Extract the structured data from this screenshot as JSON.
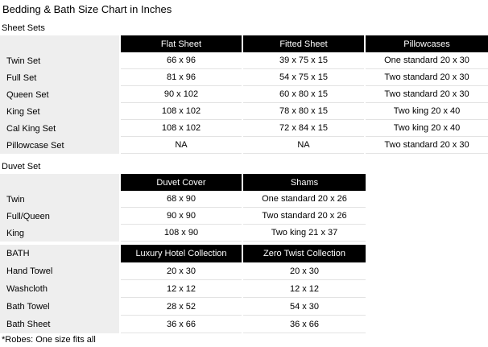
{
  "page": {
    "title": "Bedding & Bath Size Chart in Inches",
    "footnote": "*Robes: One size fits all"
  },
  "colors": {
    "header_bg": "#000000",
    "header_text": "#ffffff",
    "label_column_bg": "#eeeeee",
    "row_border": "#e3e3e3",
    "text": "#000000"
  },
  "tables": [
    {
      "section_label": "Sheet Sets",
      "columns": [
        "",
        "Flat Sheet",
        "Fitted Sheet",
        "Pillowcases"
      ],
      "rows": [
        {
          "label": "Twin Set",
          "values": [
            "66 x 96",
            "39 x 75 x 15",
            "One standard 20 x 30"
          ]
        },
        {
          "label": "Full Set",
          "values": [
            "81 x 96",
            "54 x 75 x 15",
            "Two standard 20 x 30"
          ]
        },
        {
          "label": "Queen Set",
          "values": [
            "90 x 102",
            "60 x 80 x 15",
            "Two standard 20 x 30"
          ]
        },
        {
          "label": "King Set",
          "values": [
            "108 x 102",
            "78 x 80 x 15",
            "Two king 20 x 40"
          ]
        },
        {
          "label": "Cal King Set",
          "values": [
            "108 x 102",
            "72 x 84 x 15",
            "Two king 20 x 40"
          ]
        },
        {
          "label": "Pillowcase Set",
          "values": [
            "NA",
            "NA",
            "Two standard 20 x 30"
          ]
        }
      ]
    },
    {
      "section_label": "Duvet Set",
      "columns": [
        "",
        "Duvet Cover",
        "Shams"
      ],
      "rows": [
        {
          "label": "Twin",
          "values": [
            "68 x 90",
            "One standard 20 x 26"
          ]
        },
        {
          "label": "Full/Queen",
          "values": [
            "90 x 90",
            "Two standard 20 x 26"
          ]
        },
        {
          "label": "King",
          "values": [
            "108 x 90",
            "Two king 21 x 37"
          ]
        }
      ]
    },
    {
      "section_label": "",
      "columns": [
        "BATH",
        "Luxury Hotel Collection",
        "Zero Twist Collection"
      ],
      "rows": [
        {
          "label": "Hand Towel",
          "values": [
            "20 x 30",
            "20 x 30"
          ]
        },
        {
          "label": "Washcloth",
          "values": [
            "12 x 12",
            "12 x 12"
          ]
        },
        {
          "label": "Bath Towel",
          "values": [
            "28 x 52",
            "54 x 30"
          ]
        },
        {
          "label": "Bath Sheet",
          "values": [
            "36 x 66",
            "36 x 66"
          ]
        }
      ]
    }
  ]
}
